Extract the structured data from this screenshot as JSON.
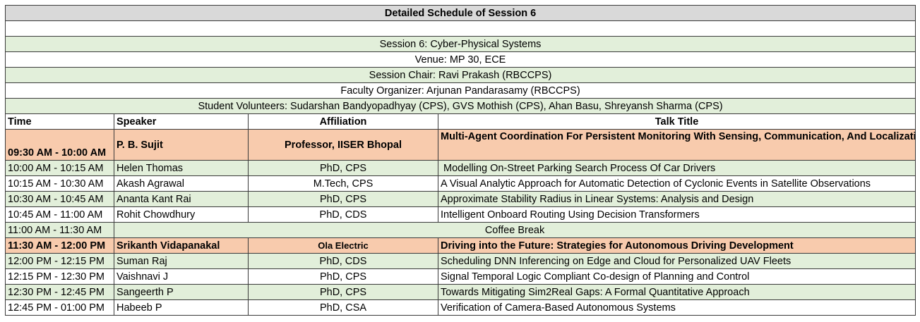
{
  "title": "Detailed Schedule of Session 6",
  "info": [
    "Session 6: Cyber-Physical Systems",
    "Venue: MP 30, ECE",
    "Session Chair: Ravi Prakash (RBCCPS)",
    "Faculty Organizer: Arjunan Pandarasamy (RBCCPS)",
    "Student Volunteers: Sudarshan Bandyopadhyay (CPS), GVS Mothish (CPS), Ahan Basu, Shreyansh Sharma (CPS)"
  ],
  "headers": {
    "time": "Time",
    "speaker": "Speaker",
    "affiliation": "Affiliation",
    "talk": "Talk Title"
  },
  "rows": [
    {
      "time": "09:30 AM - 10:00 AM",
      "speaker": "P. B. Sujit",
      "affiliation": "Professor, IISER Bhopal",
      "talk": "Multi-Agent Coordination For Persistent Monitoring With Sensing, Communication, And Localization Constraints"
    },
    {
      "time": "10:00 AM - 10:15 AM",
      "speaker": "Helen Thomas",
      "affiliation": "PhD, CPS",
      "talk": " Modelling On-Street Parking Search Process Of Car Drivers"
    },
    {
      "time": "10:15 AM - 10:30 AM",
      "speaker": "Akash Agrawal",
      "affiliation": "M.Tech, CPS",
      "talk": "A Visual Analytic Approach for Automatic Detection of Cyclonic Events in Satellite Observations"
    },
    {
      "time": "10:30 AM - 10:45 AM",
      "speaker": "Ananta Kant Rai",
      "affiliation": "PhD, CPS",
      "talk": "Approximate Stability Radius in Linear Systems: Analysis and Design"
    },
    {
      "time": "10:45 AM - 11:00 AM",
      "speaker": "Rohit Chowdhury",
      "affiliation": "PhD, CDS",
      "talk": "Intelligent Onboard Routing Using Decision Transformers"
    },
    {
      "time": "11:00 AM - 11:30 AM",
      "break": "Coffee Break"
    },
    {
      "time": "11:30 AM - 12:00 PM",
      "speaker": "Srikanth Vidapanakal",
      "affiliation": "Ola Electric",
      "talk": "Driving into the Future: Strategies for Autonomous Driving Development"
    },
    {
      "time": "12:00 PM - 12:15 PM",
      "speaker": "Suman Raj",
      "affiliation": "PhD, CDS",
      "talk": "Scheduling DNN Inferencing on Edge and Cloud for Personalized UAV Fleets"
    },
    {
      "time": "12:15 PM - 12:30 PM",
      "speaker": "Vaishnavi J",
      "affiliation": "PhD, CPS",
      "talk": "Signal Temporal Logic Compliant Co-design of Planning and Control"
    },
    {
      "time": "12:30 PM - 12:45 PM",
      "speaker": "Sangeerth P",
      "affiliation": "PhD, CPS",
      "talk": "Towards Mitigating Sim2Real Gaps: A Formal Quantitative Approach"
    },
    {
      "time": "12:45 PM - 01:00 PM",
      "speaker": "Habeeb P",
      "affiliation": "PhD, CSA",
      "talk": "Verification of Camera-Based Autonomous Systems"
    }
  ],
  "colors": {
    "header": "#d9d9d9",
    "green": "#e2efda",
    "keynote": "#f8cbad",
    "white": "#ffffff"
  }
}
